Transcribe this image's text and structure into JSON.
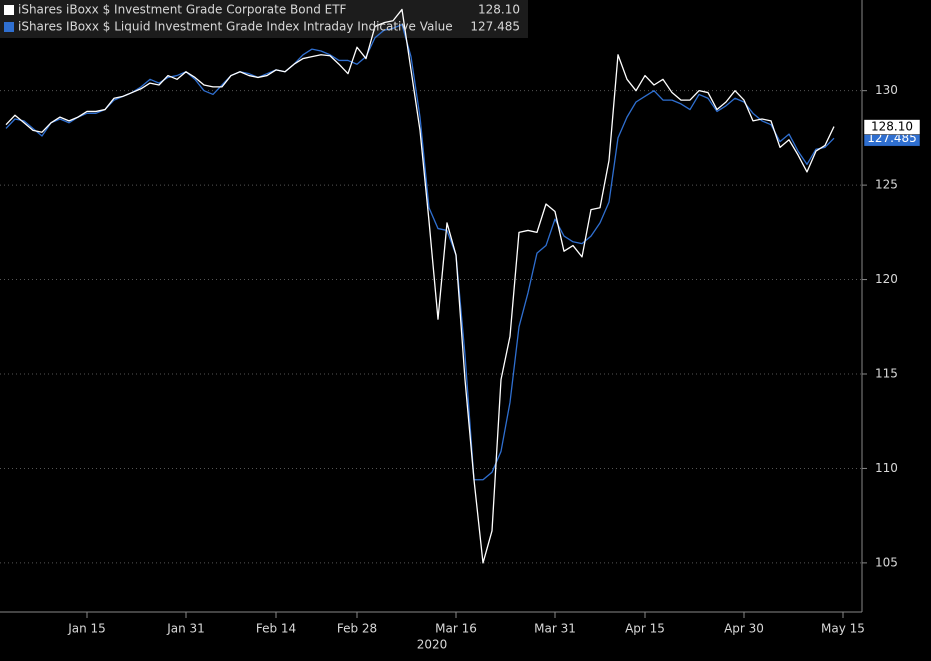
{
  "chart_data": {
    "type": "line",
    "x_group_label": "2020",
    "categories": [
      null,
      null,
      null,
      null,
      null,
      null,
      null,
      null,
      null,
      "Jan 15",
      null,
      null,
      null,
      null,
      null,
      null,
      null,
      null,
      null,
      null,
      "Jan 31",
      null,
      null,
      null,
      null,
      null,
      null,
      null,
      null,
      null,
      "Feb 14",
      null,
      null,
      null,
      null,
      null,
      null,
      null,
      null,
      "Feb 28",
      null,
      null,
      null,
      null,
      null,
      null,
      null,
      null,
      null,
      null,
      "Mar 16",
      null,
      null,
      null,
      null,
      null,
      null,
      null,
      null,
      null,
      null,
      "Mar 31",
      null,
      null,
      null,
      null,
      null,
      null,
      null,
      null,
      null,
      "Apr 15",
      null,
      null,
      null,
      null,
      null,
      null,
      null,
      null,
      null,
      null,
      "Apr 30",
      null,
      null,
      null,
      null,
      null,
      null,
      null,
      null,
      null,
      null,
      "May 15"
    ],
    "series": [
      {
        "name": "iShares iBoxx $ Investment Grade Corporate Bond ETF",
        "color": "#ffffff",
        "last_label": "128.10",
        "values": [
          128.2,
          128.7,
          128.3,
          127.9,
          127.8,
          128.3,
          128.6,
          128.4,
          128.6,
          128.9,
          128.9,
          129.0,
          129.6,
          129.7,
          129.9,
          130.1,
          130.4,
          130.3,
          130.8,
          130.6,
          131.0,
          130.7,
          130.3,
          130.2,
          130.2,
          130.8,
          131.0,
          130.8,
          130.7,
          130.8,
          131.1,
          131.0,
          131.4,
          131.7,
          131.8,
          131.9,
          131.85,
          131.4,
          130.9,
          132.3,
          131.7,
          133.4,
          133.6,
          133.7,
          134.3,
          131.1,
          127.9,
          123.1,
          117.9,
          123.0,
          121.3,
          114.7,
          109.4,
          105.0,
          106.7,
          114.7,
          117.0,
          122.5,
          122.6,
          122.5,
          124.0,
          123.6,
          121.5,
          121.8,
          121.2,
          123.7,
          123.8,
          126.3,
          131.9,
          130.6,
          130.0,
          130.8,
          130.3,
          130.6,
          129.9,
          129.5,
          129.5,
          130.0,
          129.9,
          129.0,
          129.4,
          130.0,
          129.5,
          128.4,
          128.5,
          128.4,
          127.0,
          127.4,
          126.6,
          125.7,
          126.8,
          127.1,
          128.1,
          null
        ]
      },
      {
        "name": "iShares IBoxx $ Liquid Investment Grade Index Intraday Indicative Value",
        "color": "#2f6fd0",
        "last_label": "127.485",
        "values": [
          128.0,
          128.5,
          128.4,
          128.0,
          127.6,
          128.3,
          128.5,
          128.3,
          128.6,
          128.8,
          128.8,
          129.0,
          129.5,
          129.7,
          129.9,
          130.2,
          130.6,
          130.4,
          130.7,
          130.8,
          131.0,
          130.6,
          130.0,
          129.8,
          130.3,
          130.8,
          131.0,
          130.9,
          130.7,
          130.9,
          131.1,
          131.0,
          131.4,
          131.9,
          132.2,
          132.1,
          131.9,
          131.6,
          131.6,
          131.4,
          131.8,
          132.8,
          133.2,
          133.3,
          133.5,
          131.8,
          128.6,
          123.8,
          122.7,
          122.6,
          121.3,
          116.0,
          109.4,
          109.4,
          109.8,
          110.9,
          113.5,
          117.5,
          119.3,
          121.4,
          121.8,
          123.2,
          122.3,
          122.0,
          121.9,
          122.3,
          123.0,
          124.1,
          127.5,
          128.6,
          129.4,
          129.7,
          130.0,
          129.5,
          129.5,
          129.3,
          129.0,
          129.8,
          129.6,
          128.9,
          129.2,
          129.6,
          129.4,
          128.8,
          128.4,
          128.2,
          127.3,
          127.7,
          126.8,
          126.1,
          126.9,
          127.0,
          127.485,
          null
        ]
      }
    ],
    "ylim": [
      102.4,
      134.8
    ],
    "yticks": [
      105,
      110,
      115,
      120,
      125,
      130
    ],
    "y_axis_side": "right",
    "grid": true
  }
}
